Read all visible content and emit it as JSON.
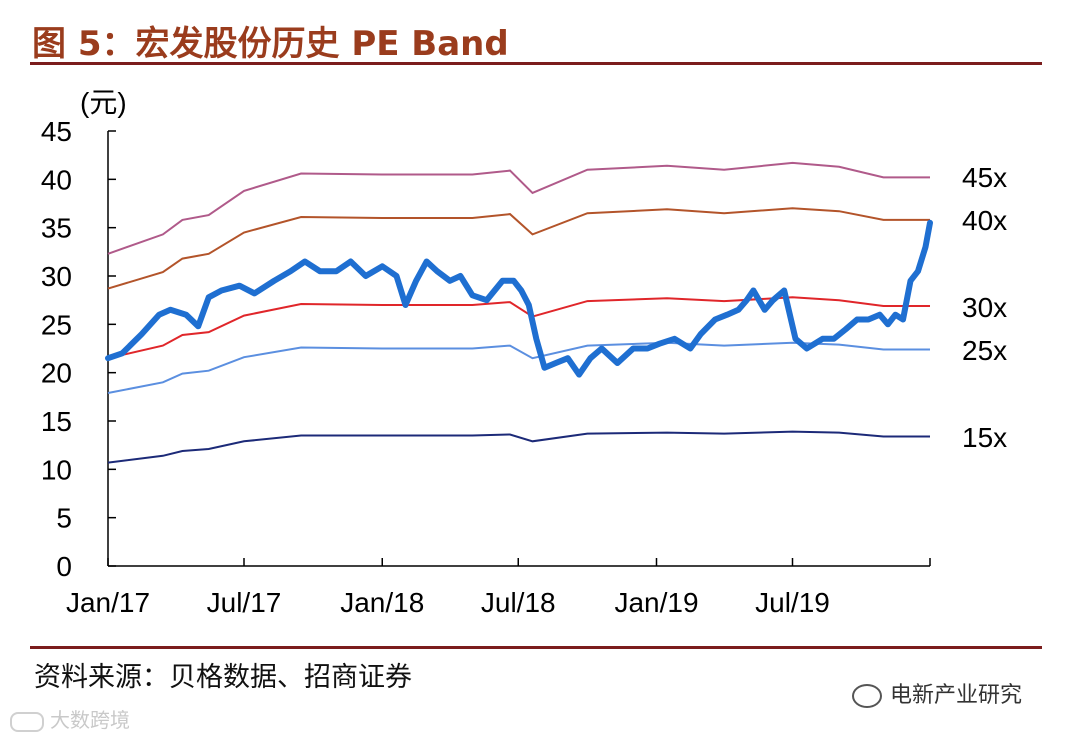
{
  "header": {
    "title": "图 5：宏发股份历史 PE Band"
  },
  "footer": {
    "source": "资料来源：贝格数据、招商证券",
    "watermark_right": "电新产业研究",
    "watermark_left": "大数跨境"
  },
  "colors": {
    "title": "#9a3c1d",
    "rule": "#7b1d1d",
    "price": "#1f6fd1",
    "pe45": "#b05a8a",
    "pe40": "#b3542a",
    "pe30": "#e0262a",
    "pe25": "#5b8fe0",
    "pe15": "#1c2a78"
  },
  "chart_data": {
    "type": "line",
    "ylabel": "(元)",
    "ylim": [
      0,
      45
    ],
    "yticks": [
      0,
      5,
      10,
      15,
      20,
      25,
      30,
      35,
      40,
      45
    ],
    "x_ticks": [
      "Jan/17",
      "Jul/17",
      "Jan/18",
      "Jul/18",
      "Jan/19",
      "Jul/19"
    ],
    "x_range": [
      "2017-01-01",
      "2019-12-31"
    ],
    "band_labels": [
      "45x",
      "40x",
      "30x",
      "25x",
      "15x"
    ],
    "series": [
      {
        "name": "45x",
        "x": [
          "2017-01-01",
          "2017-03-15",
          "2017-04-10",
          "2017-05-15",
          "2017-07-01",
          "2017-09-15",
          "2018-01-01",
          "2018-05-01",
          "2018-06-20",
          "2018-07-20",
          "2018-10-01",
          "2019-01-15",
          "2019-04-01",
          "2019-07-01",
          "2019-09-01",
          "2019-10-30",
          "2019-12-31"
        ],
        "values": [
          32.3,
          34.3,
          35.8,
          36.3,
          38.8,
          40.6,
          40.5,
          40.5,
          40.9,
          38.6,
          41.0,
          41.4,
          41.0,
          41.7,
          41.3,
          40.2,
          40.2
        ]
      },
      {
        "name": "40x",
        "x": [
          "2017-01-01",
          "2017-03-15",
          "2017-04-10",
          "2017-05-15",
          "2017-07-01",
          "2017-09-15",
          "2018-01-01",
          "2018-05-01",
          "2018-06-20",
          "2018-07-20",
          "2018-10-01",
          "2019-01-15",
          "2019-04-01",
          "2019-07-01",
          "2019-09-01",
          "2019-10-30",
          "2019-12-31"
        ],
        "values": [
          28.7,
          30.4,
          31.8,
          32.3,
          34.5,
          36.1,
          36.0,
          36.0,
          36.4,
          34.3,
          36.5,
          36.9,
          36.5,
          37.0,
          36.7,
          35.8,
          35.8
        ]
      },
      {
        "name": "30x",
        "x": [
          "2017-01-01",
          "2017-03-15",
          "2017-04-10",
          "2017-05-15",
          "2017-07-01",
          "2017-09-15",
          "2018-01-01",
          "2018-05-01",
          "2018-06-20",
          "2018-07-20",
          "2018-10-01",
          "2019-01-15",
          "2019-04-01",
          "2019-07-01",
          "2019-09-01",
          "2019-10-30",
          "2019-12-31"
        ],
        "values": [
          21.5,
          22.8,
          23.9,
          24.2,
          25.9,
          27.1,
          27.0,
          27.0,
          27.3,
          25.8,
          27.4,
          27.7,
          27.4,
          27.8,
          27.5,
          26.9,
          26.9
        ]
      },
      {
        "name": "25x",
        "x": [
          "2017-01-01",
          "2017-03-15",
          "2017-04-10",
          "2017-05-15",
          "2017-07-01",
          "2017-09-15",
          "2018-01-01",
          "2018-05-01",
          "2018-06-20",
          "2018-07-20",
          "2018-10-01",
          "2019-01-15",
          "2019-04-01",
          "2019-07-01",
          "2019-09-01",
          "2019-10-30",
          "2019-12-31"
        ],
        "values": [
          17.9,
          19.0,
          19.9,
          20.2,
          21.6,
          22.6,
          22.5,
          22.5,
          22.8,
          21.5,
          22.8,
          23.1,
          22.8,
          23.1,
          22.9,
          22.4,
          22.4
        ]
      },
      {
        "name": "15x",
        "x": [
          "2017-01-01",
          "2017-03-15",
          "2017-04-10",
          "2017-05-15",
          "2017-07-01",
          "2017-09-15",
          "2018-01-01",
          "2018-05-01",
          "2018-06-20",
          "2018-07-20",
          "2018-10-01",
          "2019-01-15",
          "2019-04-01",
          "2019-07-01",
          "2019-09-01",
          "2019-10-30",
          "2019-12-31"
        ],
        "values": [
          10.7,
          11.4,
          11.9,
          12.1,
          12.9,
          13.5,
          13.5,
          13.5,
          13.6,
          12.9,
          13.7,
          13.8,
          13.7,
          13.9,
          13.8,
          13.4,
          13.4
        ]
      },
      {
        "x": [
          "2017-01-01",
          "2017-01-20",
          "2017-02-15",
          "2017-03-10",
          "2017-03-25",
          "2017-04-15",
          "2017-05-01",
          "2017-05-15",
          "2017-06-01",
          "2017-06-25",
          "2017-07-15",
          "2017-08-10",
          "2017-09-01",
          "2017-09-20",
          "2017-10-10",
          "2017-11-01",
          "2017-11-20",
          "2017-12-10",
          "2018-01-01",
          "2018-01-20",
          "2018-02-01",
          "2018-02-15",
          "2018-03-01",
          "2018-03-15",
          "2018-04-01",
          "2018-04-15",
          "2018-05-01",
          "2018-05-20",
          "2018-06-10",
          "2018-06-25",
          "2018-07-05",
          "2018-07-15",
          "2018-07-25",
          "2018-08-05",
          "2018-08-20",
          "2018-09-05",
          "2018-09-20",
          "2018-10-05",
          "2018-10-20",
          "2018-11-10",
          "2018-12-01",
          "2018-12-20",
          "2019-01-05",
          "2019-01-25",
          "2019-02-15",
          "2019-03-01",
          "2019-03-20",
          "2019-04-05",
          "2019-04-20",
          "2019-05-01",
          "2019-05-10",
          "2019-05-25",
          "2019-06-05",
          "2019-06-20",
          "2019-07-05",
          "2019-07-20",
          "2019-08-10",
          "2019-08-25",
          "2019-09-10",
          "2019-09-25",
          "2019-10-10",
          "2019-10-25",
          "2019-11-05",
          "2019-11-15",
          "2019-11-25",
          "2019-12-05",
          "2019-12-15",
          "2019-12-25",
          "2019-12-31"
        ],
        "values": [
          21.5,
          22.0,
          24.0,
          26.0,
          26.5,
          26.0,
          24.8,
          27.8,
          28.5,
          29.0,
          28.2,
          29.5,
          30.5,
          31.5,
          30.5,
          30.5,
          31.5,
          30.0,
          31.0,
          30.0,
          27.0,
          29.5,
          31.5,
          30.5,
          29.5,
          30.0,
          28.0,
          27.5,
          29.5,
          29.5,
          28.5,
          27.0,
          23.5,
          20.5,
          21.0,
          21.5,
          19.8,
          21.5,
          22.5,
          21.0,
          22.5,
          22.5,
          23.0,
          23.5,
          22.5,
          24.0,
          25.5,
          26.0,
          26.5,
          27.5,
          28.5,
          26.5,
          27.5,
          28.5,
          23.5,
          22.5,
          23.5,
          23.5,
          24.5,
          25.5,
          25.5,
          26.0,
          25.0,
          26.0,
          25.5,
          29.5,
          30.5,
          33.0,
          35.5
        ]
      }
    ]
  }
}
